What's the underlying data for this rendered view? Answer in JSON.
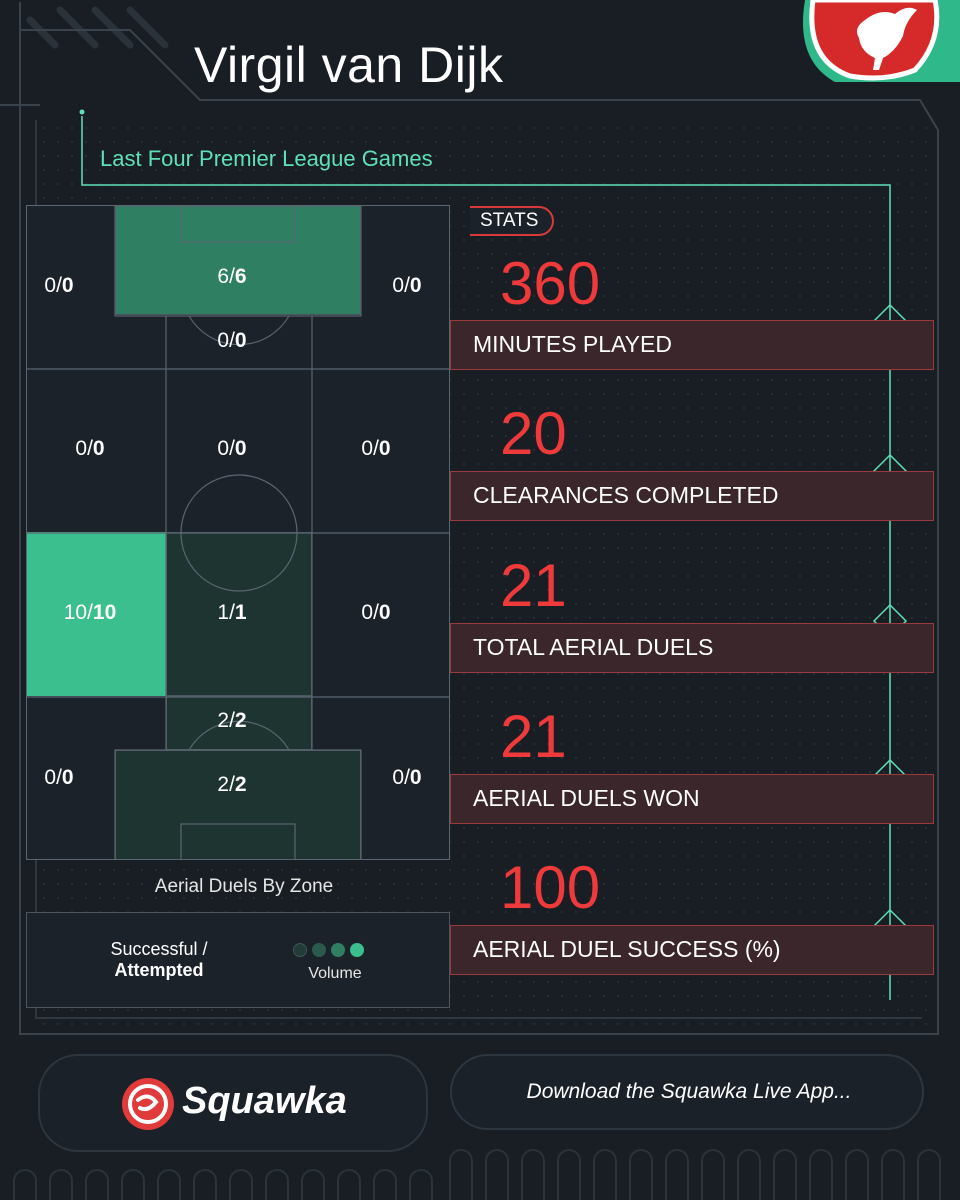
{
  "header": {
    "player_name": "Virgil van Dijk",
    "subtitle": "Last Four Premier League Games"
  },
  "pitch": {
    "caption": "Aerial Duels By Zone",
    "zones": [
      {
        "id": "r1c1",
        "won": "0/",
        "att": "0",
        "fill": "none"
      },
      {
        "id": "r1c2",
        "won": "6/",
        "att": "6",
        "fill": "mid"
      },
      {
        "id": "r1c2b",
        "won": "0/",
        "att": "0",
        "fill": "none"
      },
      {
        "id": "r1c3",
        "won": "0/",
        "att": "0",
        "fill": "none"
      },
      {
        "id": "r2c1",
        "won": "0/",
        "att": "0",
        "fill": "none"
      },
      {
        "id": "r2c2",
        "won": "0/",
        "att": "0",
        "fill": "none"
      },
      {
        "id": "r2c3",
        "won": "0/",
        "att": "0",
        "fill": "none"
      },
      {
        "id": "r3c1",
        "won": "10/",
        "att": "10",
        "fill": "high"
      },
      {
        "id": "r3c2",
        "won": "1/",
        "att": "1",
        "fill": "low"
      },
      {
        "id": "r3c3",
        "won": "0/",
        "att": "0",
        "fill": "none"
      },
      {
        "id": "r4c2a",
        "won": "2/",
        "att": "2",
        "fill": "low"
      },
      {
        "id": "r4c1",
        "won": "0/",
        "att": "0",
        "fill": "none"
      },
      {
        "id": "r4c2",
        "won": "2/",
        "att": "2",
        "fill": "low"
      },
      {
        "id": "r4c3",
        "won": "0/",
        "att": "0",
        "fill": "none"
      }
    ]
  },
  "legend": {
    "line1": "Successful /",
    "line2": "Attempted",
    "volume_label": "Volume",
    "volume_colors": [
      "#243a38",
      "#2b5a4c",
      "#2f7f62",
      "#3cbf8f"
    ]
  },
  "stats": {
    "tag": "STATS",
    "items": [
      {
        "value": "360",
        "label": "MINUTES PLAYED"
      },
      {
        "value": "20",
        "label": "CLEARANCES COMPLETED"
      },
      {
        "value": "21",
        "label": "TOTAL AERIAL DUELS"
      },
      {
        "value": "21",
        "label": "AERIAL DUELS WON"
      },
      {
        "value": "100",
        "label": "AERIAL DUEL SUCCESS (%)"
      }
    ]
  },
  "footer": {
    "brand": "Squawka",
    "cta": "Download the Squawka Live App..."
  },
  "colors": {
    "accent_green": "#5fe0b8",
    "accent_red": "#ee3a3a",
    "zone_high": "#3cbf8f",
    "zone_mid": "#2f7f62",
    "zone_low": "#1e3430"
  }
}
